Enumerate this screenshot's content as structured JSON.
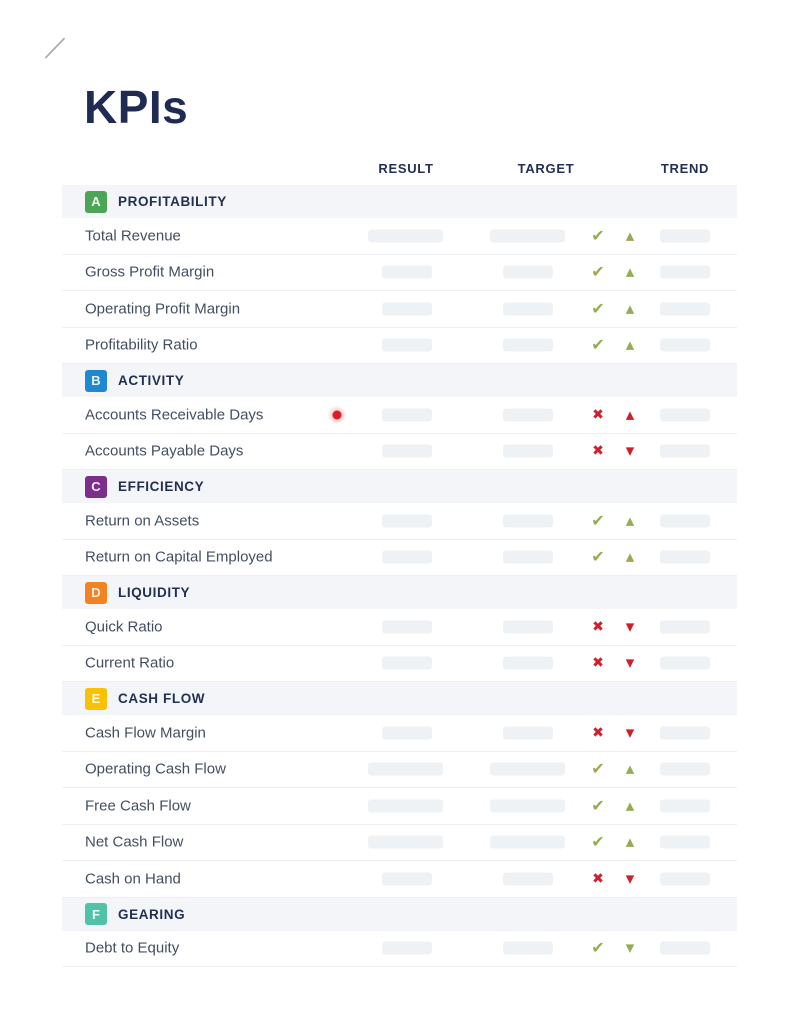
{
  "page": {
    "title": "KPIs"
  },
  "columns": {
    "result": "RESULT",
    "target": "TARGET",
    "trend": "TREND"
  },
  "icons": {
    "pass": "✔",
    "fail": "✖",
    "up": "▲",
    "down": "▼"
  },
  "colors": {
    "heading_navy": "#1f2b52",
    "row_text": "#434f61",
    "pass_green": "#94ac52",
    "fail_red": "#ce1f2d",
    "alert_dot_red": "#d81f26",
    "placeholder_gray": "#eff2f5",
    "section_band_gray": "#f3f5f9"
  },
  "table": {
    "sections": [
      {
        "letter": "A",
        "name": "PROFITABILITY",
        "color": "#4ca456",
        "rows": [
          {
            "label": "Total Revenue",
            "status": "pass",
            "trend": {
              "direction": "up",
              "color": "green"
            },
            "bars": "wide"
          },
          {
            "label": "Gross Profit Margin",
            "status": "pass",
            "trend": {
              "direction": "up",
              "color": "green"
            },
            "bars": "narrow"
          },
          {
            "label": "Operating Profit Margin",
            "status": "pass",
            "trend": {
              "direction": "up",
              "color": "green"
            },
            "bars": "narrow"
          },
          {
            "label": "Profitability Ratio",
            "status": "pass",
            "trend": {
              "direction": "up",
              "color": "green"
            },
            "bars": "narrow"
          }
        ]
      },
      {
        "letter": "B",
        "name": "ACTIVITY",
        "color": "#1e88d2",
        "rows": [
          {
            "label": "Accounts Receivable Days",
            "status": "fail",
            "trend": {
              "direction": "up",
              "color": "red"
            },
            "bars": "narrow",
            "marker": true
          },
          {
            "label": "Accounts Payable Days",
            "status": "fail",
            "trend": {
              "direction": "down",
              "color": "red"
            },
            "bars": "narrow"
          }
        ]
      },
      {
        "letter": "C",
        "name": "EFFICIENCY",
        "color": "#7d2e8d",
        "rows": [
          {
            "label": "Return on Assets",
            "status": "pass",
            "trend": {
              "direction": "up",
              "color": "green"
            },
            "bars": "narrow"
          },
          {
            "label": "Return on Capital Employed",
            "status": "pass",
            "trend": {
              "direction": "up",
              "color": "green"
            },
            "bars": "narrow"
          }
        ]
      },
      {
        "letter": "D",
        "name": "LIQUIDITY",
        "color": "#f58220",
        "rows": [
          {
            "label": "Quick Ratio",
            "status": "fail",
            "trend": {
              "direction": "down",
              "color": "red"
            },
            "bars": "narrow"
          },
          {
            "label": "Current Ratio",
            "status": "fail",
            "trend": {
              "direction": "down",
              "color": "red"
            },
            "bars": "narrow"
          }
        ]
      },
      {
        "letter": "E",
        "name": "CASH FLOW",
        "color": "#f8c200",
        "rows": [
          {
            "label": "Cash Flow Margin",
            "status": "fail",
            "trend": {
              "direction": "down",
              "color": "red"
            },
            "bars": "narrow"
          },
          {
            "label": "Operating Cash Flow",
            "status": "pass",
            "trend": {
              "direction": "up",
              "color": "green"
            },
            "bars": "wide"
          },
          {
            "label": "Free Cash Flow",
            "status": "pass",
            "trend": {
              "direction": "up",
              "color": "green"
            },
            "bars": "wide"
          },
          {
            "label": "Net Cash Flow",
            "status": "pass",
            "trend": {
              "direction": "up",
              "color": "green"
            },
            "bars": "wide"
          },
          {
            "label": "Cash on Hand",
            "status": "fail",
            "trend": {
              "direction": "down",
              "color": "red"
            },
            "bars": "narrow"
          }
        ]
      },
      {
        "letter": "F",
        "name": "GEARING",
        "color": "#4fc2a7",
        "rows": [
          {
            "label": "Debt to Equity",
            "status": "pass",
            "trend": {
              "direction": "down",
              "color": "green"
            },
            "bars": "narrow"
          }
        ]
      }
    ]
  }
}
